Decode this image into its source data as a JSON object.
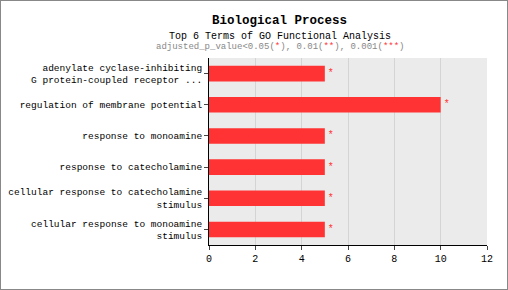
{
  "chart_data": {
    "type": "bar",
    "orientation": "horizontal",
    "title": "Biological Process",
    "subtitle": "Top 6 Terms of GO Functional Analysis",
    "caption": "adjusted_p_value<0.05(*), 0.01(**), 0.001(***)",
    "categories": [
      "adenylate cyclase-inhibiting\nG protein-coupled receptor ...",
      "regulation of membrane potential",
      "response to monoamine",
      "response to catecholamine",
      "cellular response to catecholamine\nstimulus",
      "cellular response to monoamine\nstimulus"
    ],
    "values": [
      5,
      10,
      5,
      5,
      5,
      5
    ],
    "significance": [
      "*",
      "*",
      "*",
      "*",
      "*",
      "*"
    ],
    "color": "#ff3333",
    "xlim": [
      0,
      12
    ],
    "xticks": [
      0,
      2,
      4,
      6,
      8,
      10,
      12
    ],
    "grid": true
  }
}
